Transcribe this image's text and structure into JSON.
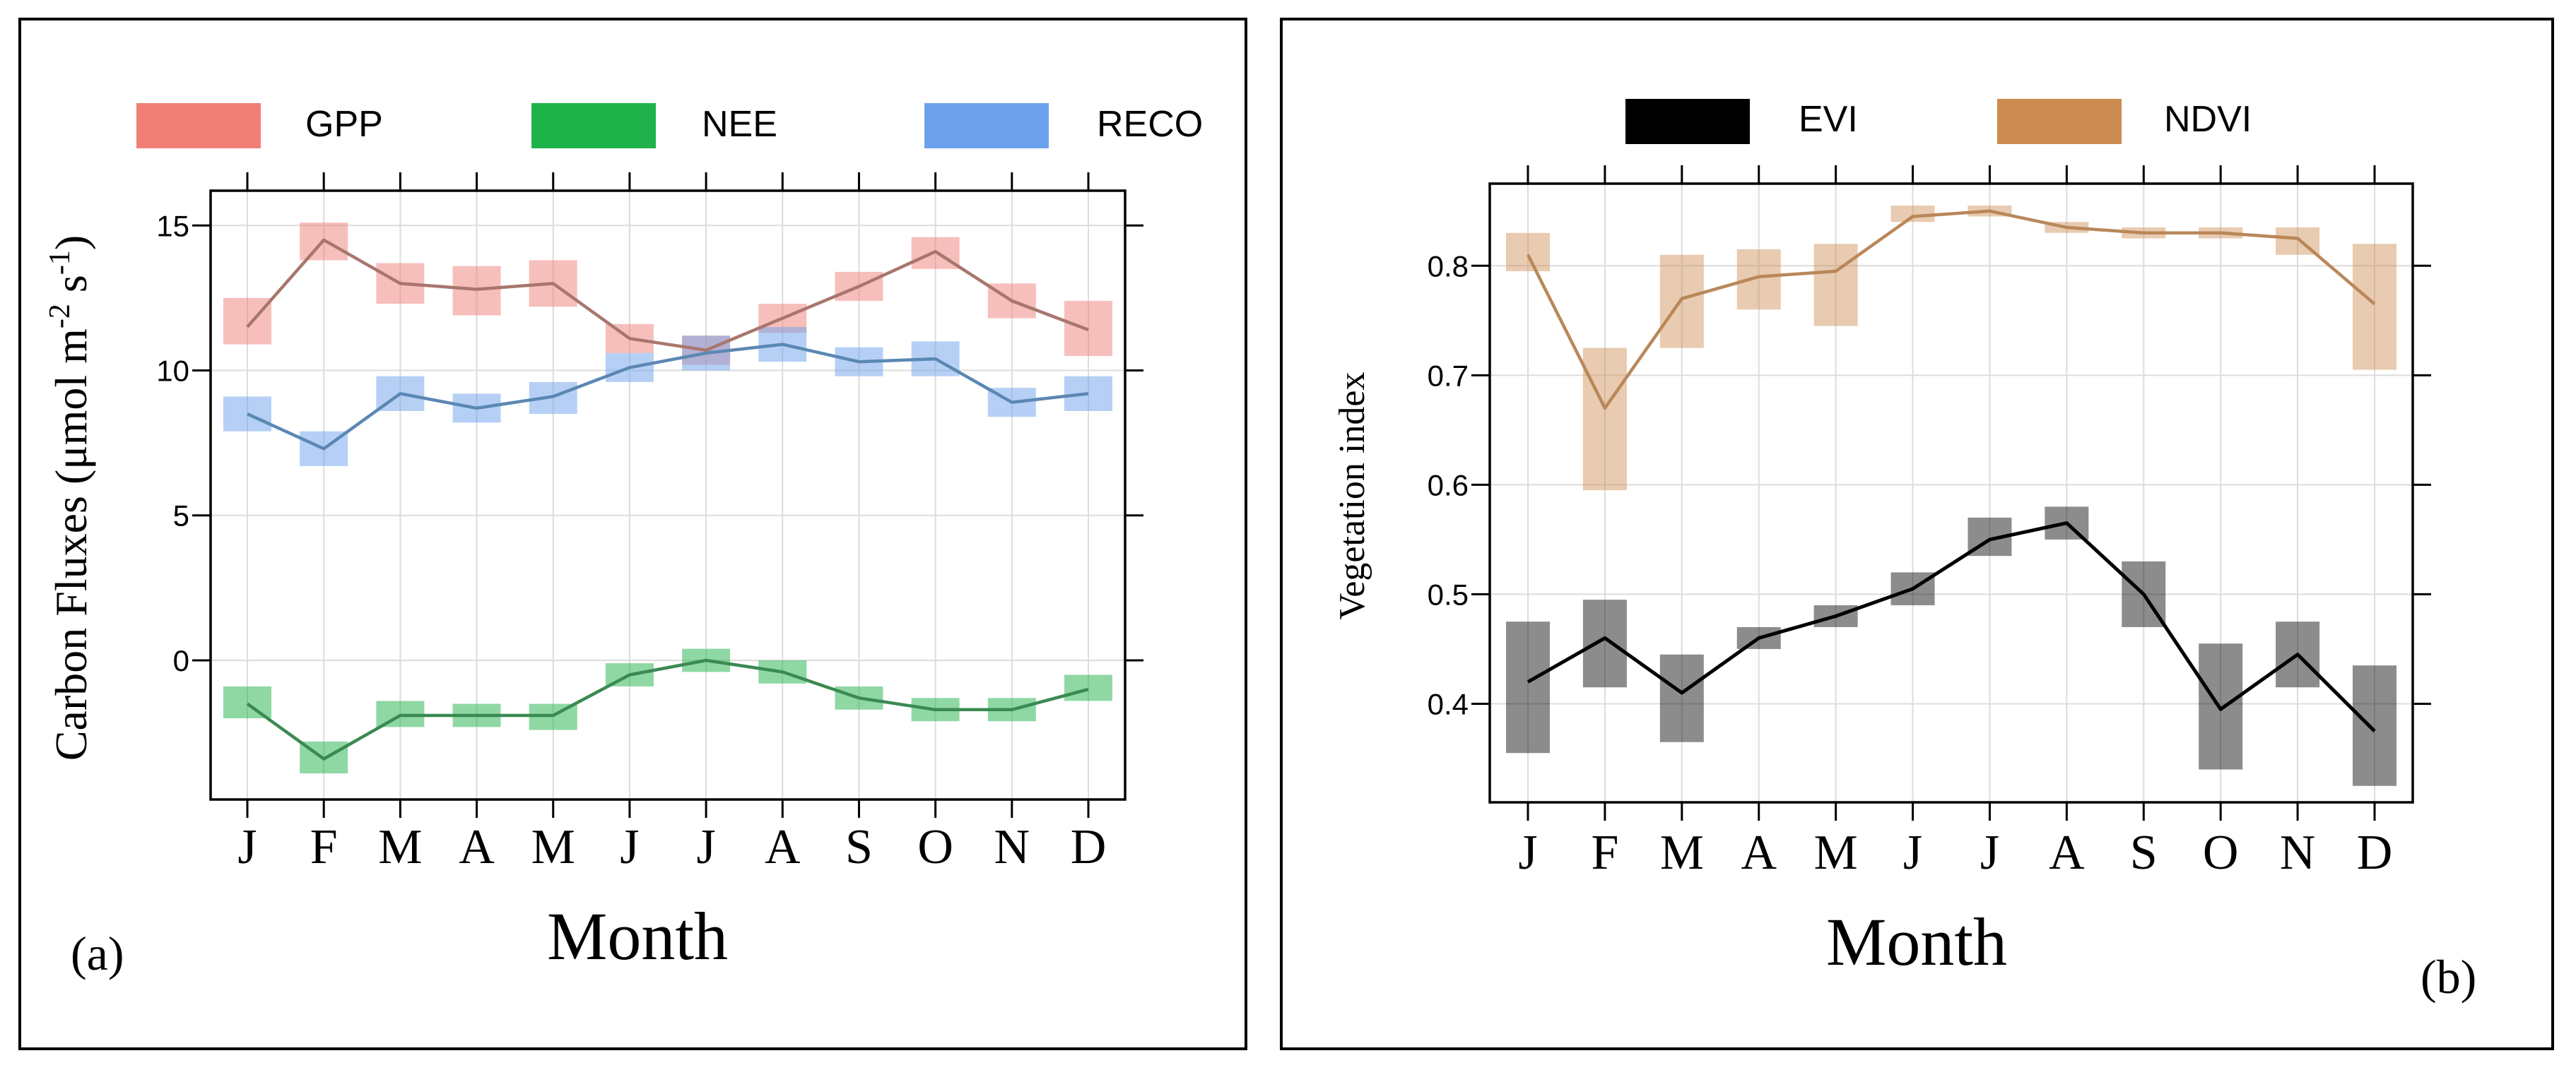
{
  "chart_data": [
    {
      "type": "line",
      "panel_label": "(a)",
      "title": "",
      "xlabel": "Month",
      "ylabel": "Carbon Fluxes (μmol m⁻² s⁻¹)",
      "ylabel_parts": [
        "Carbon Fluxes (μmol m",
        "-2",
        " s",
        "-1",
        ")"
      ],
      "categories": [
        "J",
        "F",
        "M",
        "A",
        "M",
        "J",
        "J",
        "A",
        "S",
        "O",
        "N",
        "D"
      ],
      "ylim": [
        -4.8,
        16.2
      ],
      "yticks": [
        0,
        5,
        10,
        15
      ],
      "ytick_labels": [
        "0",
        "5",
        "10",
        "15"
      ],
      "grid": true,
      "legend_position": "top",
      "series": [
        {
          "name": "GPP",
          "color": "#a8766d",
          "band_color": "#f08077",
          "values": [
            11.5,
            14.5,
            13.0,
            12.8,
            13.0,
            11.1,
            10.7,
            11.8,
            12.9,
            14.1,
            12.4,
            11.4
          ],
          "lower": [
            10.9,
            13.8,
            12.3,
            11.9,
            12.2,
            10.6,
            10.2,
            11.3,
            12.4,
            13.5,
            11.8,
            10.5
          ],
          "upper": [
            12.5,
            15.1,
            13.7,
            13.6,
            13.8,
            11.6,
            11.2,
            12.3,
            13.4,
            14.6,
            13.0,
            12.4
          ]
        },
        {
          "name": "NEE",
          "color": "#3a8a52",
          "band_color": "#20b24a",
          "values": [
            -1.5,
            -3.4,
            -1.9,
            -1.9,
            -1.9,
            -0.5,
            0.0,
            -0.4,
            -1.3,
            -1.7,
            -1.7,
            -1.0
          ],
          "lower": [
            -2.0,
            -3.9,
            -2.3,
            -2.3,
            -2.4,
            -0.9,
            -0.4,
            -0.8,
            -1.7,
            -2.1,
            -2.1,
            -1.4
          ],
          "upper": [
            -0.9,
            -2.8,
            -1.4,
            -1.5,
            -1.5,
            -0.1,
            0.4,
            0.0,
            -0.9,
            -1.3,
            -1.3,
            -0.5
          ]
        },
        {
          "name": "RECO",
          "color": "#5b87b3",
          "band_color": "#6ea1ec",
          "values": [
            8.5,
            7.3,
            9.2,
            8.7,
            9.1,
            10.1,
            10.6,
            10.9,
            10.3,
            10.4,
            8.9,
            9.2
          ],
          "lower": [
            7.9,
            6.7,
            8.6,
            8.2,
            8.5,
            9.6,
            10.0,
            10.3,
            9.8,
            9.8,
            8.4,
            8.6
          ],
          "upper": [
            9.1,
            7.9,
            9.8,
            9.2,
            9.6,
            10.6,
            11.2,
            11.5,
            10.8,
            11.0,
            9.4,
            9.8
          ]
        }
      ]
    },
    {
      "type": "line",
      "panel_label": "(b)",
      "title": "",
      "xlabel": "Month",
      "ylabel": "Vegetation index",
      "categories": [
        "J",
        "F",
        "M",
        "A",
        "M",
        "J",
        "J",
        "A",
        "S",
        "O",
        "N",
        "D"
      ],
      "ylim": [
        0.31,
        0.875
      ],
      "yticks": [
        0.4,
        0.5,
        0.6,
        0.7,
        0.8
      ],
      "ytick_labels": [
        "0.4",
        "0.5",
        "0.6",
        "0.7",
        "0.8"
      ],
      "grid": true,
      "legend_position": "top",
      "series": [
        {
          "name": "EVI",
          "color": "#000000",
          "band_color": "#000000",
          "values": [
            0.42,
            0.46,
            0.41,
            0.46,
            0.48,
            0.505,
            0.55,
            0.565,
            0.5,
            0.395,
            0.445,
            0.375
          ],
          "lower": [
            0.355,
            0.415,
            0.365,
            0.45,
            0.47,
            0.49,
            0.535,
            0.55,
            0.47,
            0.34,
            0.415,
            0.325
          ],
          "upper": [
            0.475,
            0.495,
            0.445,
            0.47,
            0.49,
            0.52,
            0.57,
            0.58,
            0.53,
            0.455,
            0.475,
            0.435
          ]
        },
        {
          "name": "NDVI",
          "color": "#b98759",
          "band_color": "#cc8b50",
          "values": [
            0.81,
            0.67,
            0.77,
            0.79,
            0.795,
            0.845,
            0.85,
            0.835,
            0.83,
            0.83,
            0.825,
            0.765
          ],
          "lower": [
            0.795,
            0.595,
            0.725,
            0.76,
            0.745,
            0.84,
            0.845,
            0.83,
            0.825,
            0.825,
            0.81,
            0.705
          ],
          "upper": [
            0.83,
            0.725,
            0.81,
            0.815,
            0.82,
            0.855,
            0.855,
            0.84,
            0.835,
            0.835,
            0.835,
            0.82
          ]
        }
      ]
    }
  ]
}
